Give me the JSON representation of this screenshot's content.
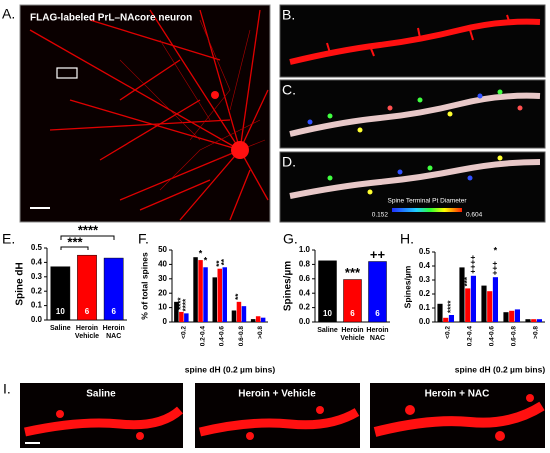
{
  "panels": {
    "a": "A.",
    "b": "B.",
    "c": "C.",
    "d": "D.",
    "e": "E.",
    "f": "F.",
    "g": "G.",
    "h": "H.",
    "i": "I."
  },
  "image_a": {
    "title": "FLAG-labeled PrL–NAcore neuron"
  },
  "image_d": {
    "colorbar_title": "Spine Terminal Pt Diameter",
    "colorbar_min": "0.152",
    "colorbar_max": "0.604"
  },
  "image_i": {
    "labels": [
      "Saline",
      "Heroin + Vehicle",
      "Heroin + NAC"
    ]
  },
  "chart_data": [
    {
      "type": "bar",
      "ylabel": "Spine dH",
      "categories": [
        "Saline",
        "Heroin Vehicle",
        "Heroin NAC"
      ],
      "values": [
        0.37,
        0.45,
        0.43
      ],
      "colors": [
        "#000000",
        "#ff0000",
        "#0000ff"
      ],
      "n": [
        10,
        6,
        6
      ],
      "ylim": [
        0,
        0.5
      ],
      "yticks": [
        {
          "value": 0,
          "label": "0.0"
        },
        0.1,
        0.2,
        0.3,
        0.4,
        0.5
      ],
      "annotations": [
        "****",
        "***"
      ]
    },
    {
      "type": "grouped_bar",
      "ylabel": "% of total spines",
      "xlabel": "spine dH (0.2 µm bins)",
      "categories": [
        "<0.2",
        "0.2-0.4",
        "0.4-0.6",
        "0.6-0.8",
        ">0.8"
      ],
      "series": [
        {
          "color": "#000000",
          "values": [
            14,
            45,
            31,
            8,
            2
          ]
        },
        {
          "color": "#ff0000",
          "values": [
            7,
            43,
            37,
            14,
            4
          ]
        },
        {
          "color": "#0000ff",
          "values": [
            6,
            38,
            38,
            11,
            3
          ]
        }
      ],
      "ylim": [
        0,
        50
      ],
      "yticks": [
        0,
        10,
        20,
        30,
        40,
        50
      ],
      "annotations": [
        "****",
        "****",
        "*",
        "*",
        "**",
        "**",
        "**"
      ]
    },
    {
      "type": "bar",
      "ylabel": "Spines/µm",
      "categories": [
        "Saline",
        "Heroin Vehicle",
        "Heroin NAC"
      ],
      "values": [
        0.85,
        0.59,
        0.84
      ],
      "colors": [
        "#000000",
        "#ff0000",
        "#0000ff"
      ],
      "n": [
        10,
        6,
        6
      ],
      "ylim": [
        0,
        1
      ],
      "yticks": [
        {
          "value": 0,
          "label": "0.0"
        },
        0.2,
        0.4,
        0.6,
        0.8,
        {
          "value": 1,
          "label": "1.0"
        }
      ],
      "annotations": [
        "***",
        "++"
      ]
    },
    {
      "type": "grouped_bar",
      "ylabel": "Spines/µm",
      "xlabel": "spine dH (0.2 µm bins)",
      "categories": [
        "<0.2",
        "0.2-0.4",
        "0.4-0.6",
        "0.6-0.8",
        ">0.8"
      ],
      "series": [
        {
          "color": "#000000",
          "values": [
            0.13,
            0.39,
            0.26,
            0.07,
            0.02
          ]
        },
        {
          "color": "#ff0000",
          "values": [
            0.03,
            0.24,
            0.22,
            0.08,
            0.02
          ]
        },
        {
          "color": "#0000ff",
          "values": [
            0.05,
            0.33,
            0.32,
            0.09,
            0.02
          ]
        }
      ],
      "ylim": [
        0,
        0.5
      ],
      "yticks": [
        {
          "value": 0,
          "label": "0.0"
        },
        0.1,
        0.2,
        0.3,
        0.4,
        0.5
      ],
      "annotations": [
        "****",
        "***",
        "++++",
        "*",
        "+++"
      ]
    }
  ]
}
